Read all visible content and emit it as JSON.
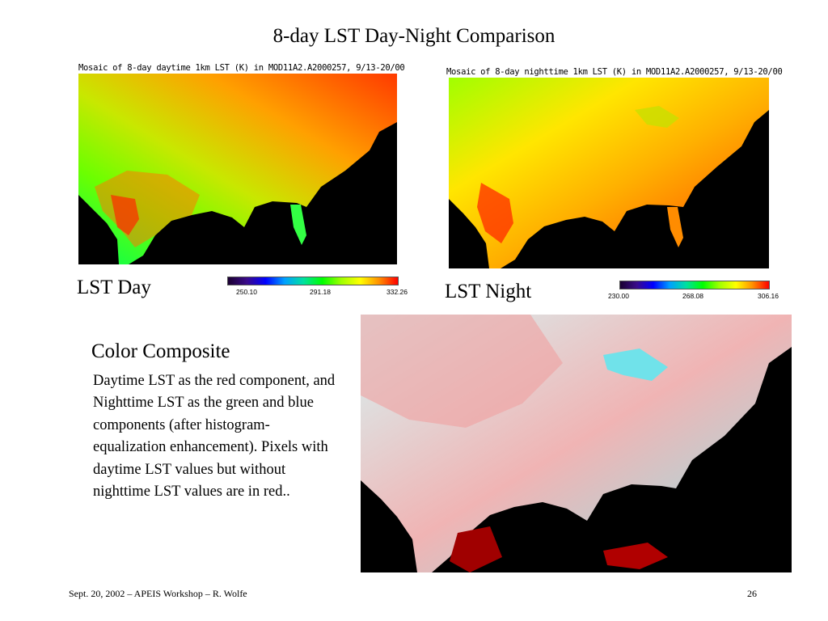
{
  "title": "8-day LST Day-Night Comparison",
  "panels": {
    "day": {
      "caption": "Mosaic of 8-day daytime 1km LST (K) in MOD11A2.A2000257, 9/13-20/00",
      "label": "LST Day",
      "colorbar": {
        "min": "250.10",
        "mid": "291.18",
        "max": "332.26"
      }
    },
    "night": {
      "caption": "Mosaic of 8-day nighttime 1km LST (K) in MOD11A2.A2000257, 9/13-20/00",
      "label": "LST Night",
      "colorbar": {
        "min": "230.00",
        "mid": "268.08",
        "max": "306.16"
      }
    },
    "composite": {
      "heading": "Color Composite",
      "description": "Daytime LST as the red component, and Nighttime LST as the green and blue components (after histogram-equalization enhancement). Pixels with daytime LST values but without nighttime LST values are in red.."
    }
  },
  "colors": {
    "colorbar_gradient": [
      "#1a0030",
      "#3a0a8a",
      "#0000ff",
      "#00a0ff",
      "#00e0a0",
      "#00ff00",
      "#a0ff00",
      "#ffff00",
      "#ff9000",
      "#ff0000"
    ],
    "day_map": [
      "#00ff55",
      "#6cff00",
      "#c8e800",
      "#ffa000",
      "#ff3a00"
    ],
    "night_map": [
      "#a0ff00",
      "#ffe600",
      "#ffb000",
      "#ff7000",
      "#ff2a00"
    ],
    "composite_map": [
      "#d6f4f4",
      "#f0b4b4",
      "#8fe8ec",
      "#b00000"
    ]
  },
  "footer": {
    "left": "Sept. 20, 2002 – APEIS Workshop – R. Wolfe",
    "page": "26"
  }
}
